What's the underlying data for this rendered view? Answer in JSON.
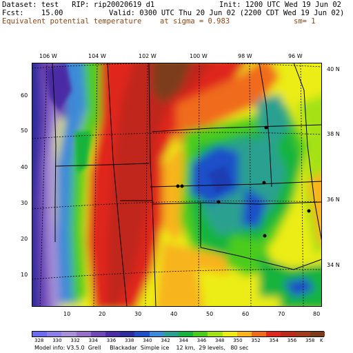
{
  "header": {
    "dataset": "Dataset: test   RIP: rip20020619 d1",
    "init": "Init: 1200 UTC Wed 19 Jun 02",
    "fcst": "Fcst:    15.00",
    "valid": "Valid: 0300 UTC Thu 20 Jun 02 (2200 CDT Wed 19 Jun 02)",
    "field": "Equivalent potential temperature",
    "level": "at sigma = 0.983",
    "sm": "sm= 1"
  },
  "top_ticks": [
    "106 W",
    "104 W",
    "102 W",
    "100 W",
    "98 W",
    "96 W"
  ],
  "right_ticks": [
    "40 N",
    "38 N",
    "36 N",
    "34 N"
  ],
  "left_ticks": [
    "60",
    "50",
    "40",
    "30",
    "20",
    "10"
  ],
  "bottom_ticks": [
    "10",
    "20",
    "30",
    "40",
    "50",
    "60",
    "70",
    "80"
  ],
  "legend": {
    "labels": [
      "328",
      "330",
      "332",
      "334",
      "336",
      "338",
      "340",
      "342",
      "344",
      "346",
      "348",
      "350",
      "352",
      "354",
      "356",
      "358",
      "K"
    ],
    "colors": [
      "#6a6af2",
      "#8c80e8",
      "#a890d8",
      "#9870c8",
      "#7048b8",
      "#4c2ca6",
      "#2c2c9e",
      "#1e50c8",
      "#3c8ad8",
      "#2ca090",
      "#16b43c",
      "#4ccc1a",
      "#a4e214",
      "#ecec14",
      "#f8b41a",
      "#f06c1c",
      "#e0281c",
      "#c0281c",
      "#a03c1c",
      "#7c3c1c"
    ]
  },
  "footer": "Model info: V3.5.0  Grell     Blackadar  Simple ice    12 km,  29 levels,   80 sec"
}
